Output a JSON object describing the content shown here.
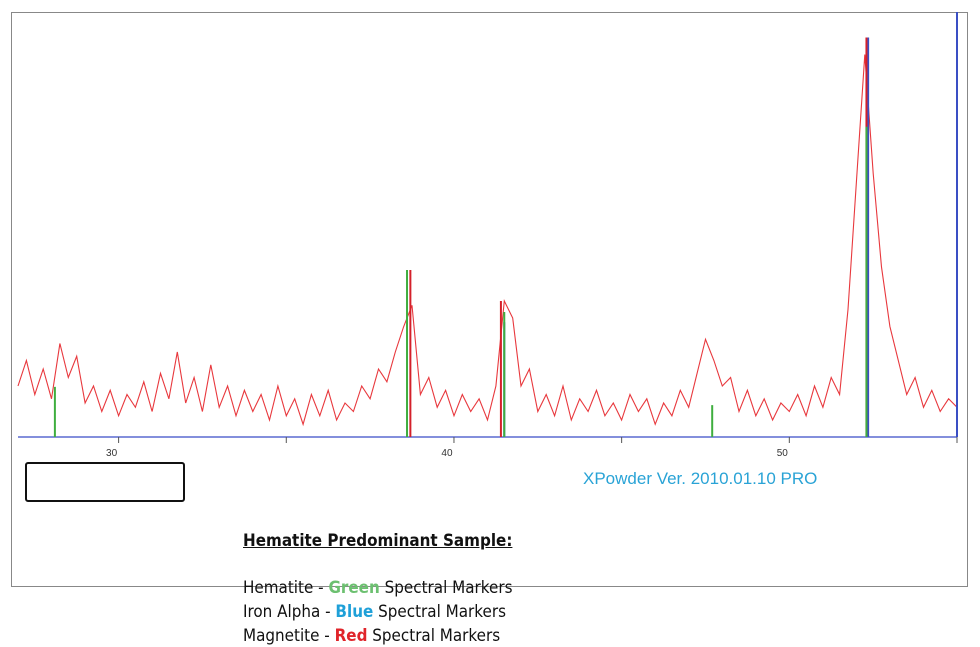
{
  "chart_data": {
    "type": "spectrum",
    "xlim": [
      27,
      55
    ],
    "ylim": [
      0,
      100
    ],
    "xticks": [
      30,
      40,
      50
    ],
    "xminor_ticks": [
      35,
      45,
      55
    ],
    "series": [
      {
        "type": "line",
        "color": "#e8383d",
        "x": [
          27,
          27.25,
          27.5,
          27.75,
          28,
          28.25,
          28.5,
          28.75,
          29,
          29.25,
          29.5,
          29.75,
          30,
          30.25,
          30.5,
          30.75,
          31,
          31.25,
          31.5,
          31.75,
          32,
          32.25,
          32.5,
          32.75,
          33,
          33.25,
          33.5,
          33.75,
          34,
          34.25,
          34.5,
          34.75,
          35,
          35.25,
          35.5,
          35.75,
          36,
          36.25,
          36.5,
          36.75,
          37,
          37.25,
          37.5,
          37.75,
          38,
          38.25,
          38.5,
          38.75,
          39,
          39.25,
          39.5,
          39.75,
          40,
          40.25,
          40.5,
          40.75,
          41,
          41.25,
          41.5,
          41.75,
          42,
          42.25,
          42.5,
          42.75,
          43,
          43.25,
          43.5,
          43.75,
          44,
          44.25,
          44.5,
          44.75,
          45,
          45.25,
          45.5,
          45.75,
          46,
          46.25,
          46.5,
          46.75,
          47,
          47.25,
          47.5,
          47.75,
          48,
          48.25,
          48.5,
          48.75,
          49,
          49.25,
          49.5,
          49.75,
          50,
          50.25,
          50.5,
          50.75,
          51,
          51.25,
          51.5,
          51.75,
          52,
          52.25,
          52.5,
          52.75,
          53,
          53.25,
          53.5,
          53.75,
          54,
          54.25,
          54.5,
          54.75,
          55
        ],
        "values": [
          12,
          18,
          10,
          16,
          9,
          22,
          14,
          19,
          8,
          12,
          6,
          11,
          5,
          10,
          7,
          13,
          6,
          15,
          9,
          20,
          8,
          14,
          6,
          17,
          7,
          12,
          5,
          11,
          6,
          10,
          4,
          12,
          5,
          9,
          3,
          10,
          5,
          11,
          4,
          8,
          6,
          12,
          9,
          16,
          13,
          20,
          26,
          31,
          10,
          14,
          7,
          11,
          5,
          10,
          6,
          9,
          4,
          12,
          32,
          28,
          12,
          16,
          6,
          10,
          5,
          12,
          4,
          9,
          6,
          11,
          5,
          8,
          4,
          10,
          6,
          9,
          3,
          8,
          5,
          11,
          7,
          15,
          23,
          18,
          12,
          14,
          6,
          11,
          5,
          9,
          4,
          8,
          6,
          10,
          5,
          12,
          7,
          14,
          10,
          30,
          60,
          90,
          62,
          40,
          26,
          18,
          10,
          14,
          7,
          11,
          6,
          9,
          7
        ]
      },
      {
        "type": "stick",
        "color": "#3a4fc4",
        "x": [
          41.5,
          52.35,
          55
        ],
        "values": [
          27,
          94,
          100
        ]
      },
      {
        "type": "stick",
        "color": "#d4202a",
        "x": [
          38.7,
          41.4,
          52.3
        ],
        "values": [
          39.3,
          32,
          94
        ]
      },
      {
        "type": "stick",
        "color": "#3fae3f",
        "x": [
          28.1,
          38.6,
          41.5,
          47.7,
          52.3
        ],
        "values": [
          11.8,
          39.3,
          29.4,
          7.5,
          73
        ]
      }
    ],
    "annotation": "XPowder Ver. 2010.01.10 PRO",
    "legend": {
      "title": "Hematite Predominant Sample:",
      "entries": [
        {
          "text": "Hematite - ",
          "word": "Green",
          "color": "#6cc070",
          "rest": " Spectral Markers"
        },
        {
          "text": "Iron Alpha - ",
          "word": "Blue",
          "color": "#1fa0d8",
          "rest": " Spectral Markers"
        },
        {
          "text": "Magnetite - ",
          "word": "Red",
          "color": "#e0242a",
          "rest": " Spectral Markers"
        }
      ]
    }
  }
}
